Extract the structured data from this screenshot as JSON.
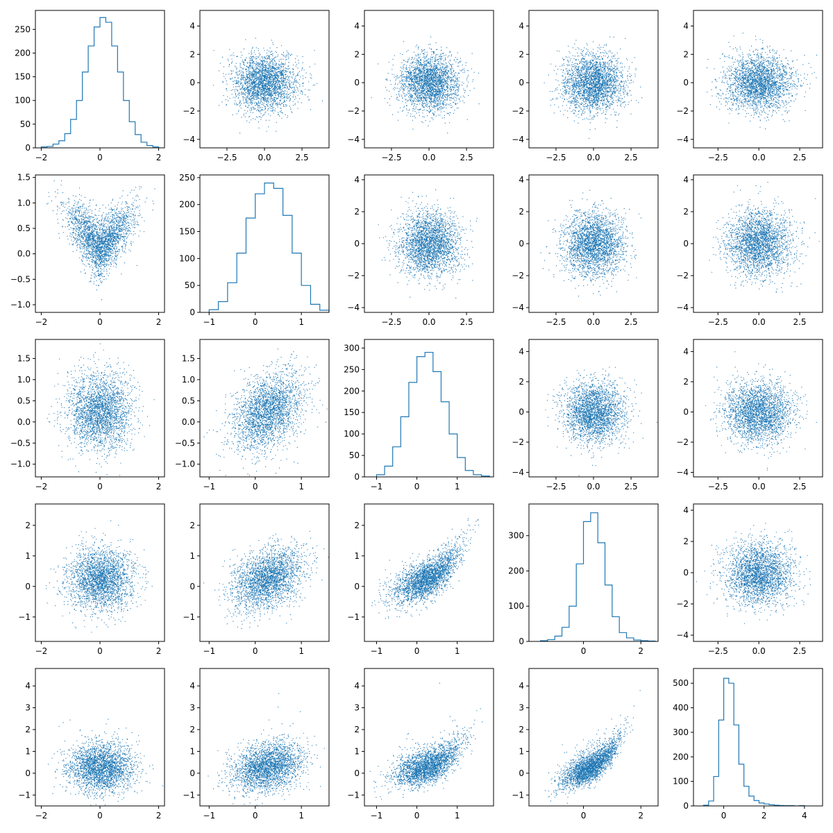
{
  "figure": {
    "grid_rows": 5,
    "grid_cols": 5,
    "layout": "pair-plot: histograms on diagonal, scatter plots off-diagonal",
    "series_color": "#1f77b4",
    "axis_color": "#000000",
    "background": "#ffffff"
  },
  "chart_data": [
    {
      "row": 0,
      "col": 0,
      "type": "histogram",
      "xlim": [
        -2.2,
        2.2
      ],
      "ylim": [
        0,
        290
      ],
      "xticks": [
        -2,
        0,
        2
      ],
      "yticks": [
        0,
        50,
        100,
        150,
        200,
        250
      ],
      "bins_x": [
        -2.0,
        -1.8,
        -1.6,
        -1.4,
        -1.2,
        -1.0,
        -0.8,
        -0.6,
        -0.4,
        -0.2,
        0.0,
        0.2,
        0.4,
        0.6,
        0.8,
        1.0,
        1.2,
        1.4,
        1.6,
        1.8,
        2.0
      ],
      "counts": [
        2,
        3,
        8,
        15,
        30,
        60,
        100,
        160,
        215,
        255,
        275,
        265,
        215,
        160,
        100,
        55,
        28,
        12,
        5,
        2
      ]
    },
    {
      "row": 0,
      "col": 1,
      "type": "scatter",
      "xlim": [
        -4.3,
        4.3
      ],
      "ylim": [
        -4.6,
        5.1
      ],
      "xticks": [
        -2.5,
        0.0,
        2.5
      ],
      "yticks": [
        -4,
        -2,
        0,
        2,
        4
      ],
      "mx": 0,
      "my": 0,
      "sx": 1.05,
      "sy": 1.0,
      "corr": 0
    },
    {
      "row": 0,
      "col": 2,
      "type": "scatter",
      "xlim": [
        -4.3,
        4.3
      ],
      "ylim": [
        -4.6,
        5.1
      ],
      "xticks": [
        -2.5,
        0.0,
        2.5
      ],
      "yticks": [
        -4,
        -2,
        0,
        2,
        4
      ],
      "mx": 0,
      "my": 0,
      "sx": 1.0,
      "sy": 1.0,
      "corr": 0
    },
    {
      "row": 0,
      "col": 3,
      "type": "scatter",
      "xlim": [
        -4.3,
        4.3
      ],
      "ylim": [
        -4.6,
        5.1
      ],
      "xticks": [
        -2.5,
        0.0,
        2.5
      ],
      "yticks": [
        -4,
        -2,
        0,
        2,
        4
      ],
      "mx": 0,
      "my": 0,
      "sx": 1.0,
      "sy": 1.0,
      "corr": 0
    },
    {
      "row": 0,
      "col": 4,
      "type": "scatter",
      "xlim": [
        -4.0,
        3.9
      ],
      "ylim": [
        -4.6,
        5.1
      ],
      "xticks": [
        -2.5,
        0.0,
        2.5
      ],
      "yticks": [
        -4,
        -2,
        0,
        2,
        4
      ],
      "mx": 0,
      "my": 0,
      "sx": 1.0,
      "sy": 1.0,
      "corr": 0
    },
    {
      "row": 1,
      "col": 0,
      "type": "scatter",
      "xlim": [
        -2.2,
        2.2
      ],
      "ylim": [
        -1.15,
        1.55
      ],
      "xticks": [
        -2,
        0,
        2
      ],
      "yticks": [
        -1.0,
        -0.5,
        0.0,
        0.5,
        1.0,
        1.5
      ],
      "mx": 0,
      "my": 0.25,
      "sx": 0.55,
      "sy": 0.38,
      "corr": 0,
      "shape": "v"
    },
    {
      "row": 1,
      "col": 1,
      "type": "histogram",
      "xlim": [
        -1.2,
        1.6
      ],
      "ylim": [
        0,
        255
      ],
      "xticks": [
        -1,
        0,
        1
      ],
      "yticks": [
        0,
        50,
        100,
        150,
        200,
        250
      ],
      "bins_x": [
        -1.0,
        -0.8,
        -0.6,
        -0.4,
        -0.2,
        0.0,
        0.2,
        0.4,
        0.6,
        0.8,
        1.0,
        1.2,
        1.4,
        1.6
      ],
      "counts": [
        5,
        20,
        55,
        110,
        175,
        220,
        240,
        230,
        180,
        110,
        50,
        15,
        4
      ]
    },
    {
      "row": 1,
      "col": 2,
      "type": "scatter",
      "xlim": [
        -4.3,
        4.3
      ],
      "ylim": [
        -4.3,
        4.3
      ],
      "xticks": [
        -2.5,
        0.0,
        2.5
      ],
      "yticks": [
        -4,
        -2,
        0,
        2,
        4
      ],
      "mx": 0,
      "my": 0,
      "sx": 1.0,
      "sy": 1.0,
      "corr": 0
    },
    {
      "row": 1,
      "col": 3,
      "type": "scatter",
      "xlim": [
        -4.3,
        4.3
      ],
      "ylim": [
        -4.3,
        4.3
      ],
      "xticks": [
        -2.5,
        0.0,
        2.5
      ],
      "yticks": [
        -4,
        -2,
        0,
        2,
        4
      ],
      "mx": 0,
      "my": 0,
      "sx": 1.0,
      "sy": 1.0,
      "corr": 0
    },
    {
      "row": 1,
      "col": 4,
      "type": "scatter",
      "xlim": [
        -4.0,
        3.9
      ],
      "ylim": [
        -4.3,
        4.3
      ],
      "xticks": [
        -2.5,
        0.0,
        2.5
      ],
      "yticks": [
        -4,
        -2,
        0,
        2,
        4
      ],
      "mx": 0,
      "my": 0,
      "sx": 1.0,
      "sy": 1.0,
      "corr": 0
    },
    {
      "row": 2,
      "col": 0,
      "type": "scatter",
      "xlim": [
        -2.2,
        2.2
      ],
      "ylim": [
        -1.3,
        1.95
      ],
      "xticks": [
        -2,
        0,
        2
      ],
      "yticks": [
        -1.0,
        -0.5,
        0.0,
        0.5,
        1.0,
        1.5
      ],
      "mx": 0,
      "my": 0.25,
      "sx": 0.55,
      "sy": 0.45,
      "corr": 0
    },
    {
      "row": 2,
      "col": 1,
      "type": "scatter",
      "xlim": [
        -1.2,
        1.6
      ],
      "ylim": [
        -1.3,
        1.95
      ],
      "xticks": [
        -1,
        0,
        1
      ],
      "yticks": [
        -1.0,
        -0.5,
        0.0,
        0.5,
        1.0,
        1.5
      ],
      "mx": 0.25,
      "my": 0.25,
      "sx": 0.38,
      "sy": 0.45,
      "corr": 0.35
    },
    {
      "row": 2,
      "col": 2,
      "type": "histogram",
      "xlim": [
        -1.3,
        1.9
      ],
      "ylim": [
        0,
        320
      ],
      "xticks": [
        -1,
        0,
        1
      ],
      "yticks": [
        0,
        50,
        100,
        150,
        200,
        250,
        300
      ],
      "bins_x": [
        -1.0,
        -0.8,
        -0.6,
        -0.4,
        -0.2,
        0.0,
        0.2,
        0.4,
        0.6,
        0.8,
        1.0,
        1.2,
        1.4,
        1.6,
        1.8
      ],
      "counts": [
        5,
        25,
        70,
        140,
        220,
        280,
        290,
        245,
        175,
        100,
        45,
        15,
        5,
        2
      ]
    },
    {
      "row": 2,
      "col": 3,
      "type": "scatter",
      "xlim": [
        -4.3,
        4.3
      ],
      "ylim": [
        -4.3,
        4.8
      ],
      "xticks": [
        -2.5,
        0.0,
        2.5
      ],
      "yticks": [
        -4,
        -2,
        0,
        2,
        4
      ],
      "mx": 0,
      "my": 0,
      "sx": 1.0,
      "sy": 1.0,
      "corr": 0
    },
    {
      "row": 2,
      "col": 4,
      "type": "scatter",
      "xlim": [
        -4.0,
        3.9
      ],
      "ylim": [
        -4.3,
        4.8
      ],
      "xticks": [
        -2.5,
        0.0,
        2.5
      ],
      "yticks": [
        -4,
        -2,
        0,
        2,
        4
      ],
      "mx": 0,
      "my": 0,
      "sx": 1.0,
      "sy": 1.0,
      "corr": 0
    },
    {
      "row": 3,
      "col": 0,
      "type": "scatter",
      "xlim": [
        -2.2,
        2.2
      ],
      "ylim": [
        -1.8,
        2.7
      ],
      "xticks": [
        -2,
        0,
        2
      ],
      "yticks": [
        -1,
        0,
        1,
        2
      ],
      "mx": 0,
      "my": 0.25,
      "sx": 0.55,
      "sy": 0.5,
      "corr": 0
    },
    {
      "row": 3,
      "col": 1,
      "type": "scatter",
      "xlim": [
        -1.2,
        1.6
      ],
      "ylim": [
        -1.8,
        2.7
      ],
      "xticks": [
        -1,
        0,
        1
      ],
      "yticks": [
        -1,
        0,
        1,
        2
      ],
      "mx": 0.25,
      "my": 0.25,
      "sx": 0.38,
      "sy": 0.5,
      "corr": 0.35
    },
    {
      "row": 3,
      "col": 2,
      "type": "scatter",
      "xlim": [
        -1.3,
        1.9
      ],
      "ylim": [
        -1.8,
        2.7
      ],
      "xticks": [
        -1,
        0,
        1
      ],
      "yticks": [
        -1,
        0,
        1,
        2
      ],
      "mx": 0.25,
      "my": 0.25,
      "sx": 0.42,
      "sy": 0.5,
      "corr": 0.55,
      "shape": "curve"
    },
    {
      "row": 3,
      "col": 3,
      "type": "histogram",
      "xlim": [
        -1.9,
        2.6
      ],
      "ylim": [
        0,
        390
      ],
      "xticks": [
        0,
        2
      ],
      "yticks": [
        0,
        100,
        200,
        300
      ],
      "bins_x": [
        -1.5,
        -1.25,
        -1.0,
        -0.75,
        -0.5,
        -0.25,
        0.0,
        0.25,
        0.5,
        0.75,
        1.0,
        1.25,
        1.5,
        1.75,
        2.0,
        2.25,
        2.5
      ],
      "counts": [
        2,
        5,
        15,
        40,
        100,
        220,
        340,
        365,
        280,
        160,
        70,
        25,
        10,
        4,
        2,
        1
      ]
    },
    {
      "row": 3,
      "col": 4,
      "type": "scatter",
      "xlim": [
        -4.0,
        3.9
      ],
      "ylim": [
        -4.4,
        4.4
      ],
      "xticks": [
        -2.5,
        0.0,
        2.5
      ],
      "yticks": [
        -4,
        -2,
        0,
        2,
        4
      ],
      "mx": 0,
      "my": 0,
      "sx": 1.0,
      "sy": 1.0,
      "corr": 0
    },
    {
      "row": 4,
      "col": 0,
      "type": "scatter",
      "xlim": [
        -2.2,
        2.2
      ],
      "ylim": [
        -1.5,
        4.8
      ],
      "xticks": [
        -2,
        0,
        2
      ],
      "yticks": [
        -1,
        0,
        1,
        2,
        3,
        4
      ],
      "mx": 0,
      "my": 0.25,
      "sx": 0.55,
      "sy": 0.55,
      "corr": 0,
      "skew": true
    },
    {
      "row": 4,
      "col": 1,
      "type": "scatter",
      "xlim": [
        -1.2,
        1.6
      ],
      "ylim": [
        -1.5,
        4.8
      ],
      "xticks": [
        -1,
        0,
        1
      ],
      "yticks": [
        -1,
        0,
        1,
        2,
        3,
        4
      ],
      "mx": 0.25,
      "my": 0.25,
      "sx": 0.38,
      "sy": 0.55,
      "corr": 0.3,
      "skew": true
    },
    {
      "row": 4,
      "col": 2,
      "type": "scatter",
      "xlim": [
        -1.3,
        1.9
      ],
      "ylim": [
        -1.5,
        4.8
      ],
      "xticks": [
        -1,
        0,
        1
      ],
      "yticks": [
        -1,
        0,
        1,
        2,
        3,
        4
      ],
      "mx": 0.25,
      "my": 0.25,
      "sx": 0.42,
      "sy": 0.55,
      "corr": 0.5,
      "skew": true,
      "shape": "curve"
    },
    {
      "row": 4,
      "col": 3,
      "type": "scatter",
      "xlim": [
        -1.9,
        2.6
      ],
      "ylim": [
        -1.5,
        4.8
      ],
      "xticks": [
        0,
        2
      ],
      "yticks": [
        -1,
        0,
        1,
        2,
        3,
        4
      ],
      "mx": 0.25,
      "my": 0.25,
      "sx": 0.5,
      "sy": 0.55,
      "corr": 0.7,
      "skew": true,
      "shape": "curve"
    },
    {
      "row": 4,
      "col": 4,
      "type": "histogram",
      "xlim": [
        -1.5,
        4.9
      ],
      "ylim": [
        0,
        560
      ],
      "xticks": [
        0,
        2,
        4
      ],
      "yticks": [
        0,
        100,
        200,
        300,
        400,
        500
      ],
      "bins_x": [
        -1.0,
        -0.75,
        -0.5,
        -0.25,
        0.0,
        0.25,
        0.5,
        0.75,
        1.0,
        1.25,
        1.5,
        1.75,
        2.0,
        2.25,
        2.5,
        2.75,
        3.0,
        3.25,
        3.5,
        3.75,
        4.0
      ],
      "counts": [
        3,
        20,
        120,
        350,
        520,
        500,
        330,
        170,
        80,
        40,
        22,
        12,
        8,
        5,
        3,
        2,
        1,
        1,
        0,
        1
      ]
    }
  ]
}
